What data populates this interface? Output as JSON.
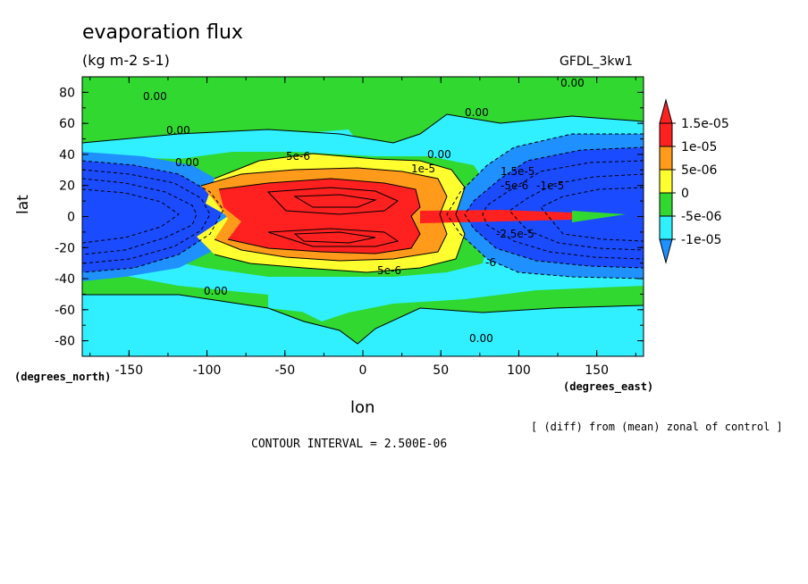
{
  "chart_data": {
    "type": "heatmap",
    "title": "evaporation flux",
    "units": "(kg m-2 s-1)",
    "model_label": "GFDL_3kw1",
    "xlabel": "lon",
    "ylabel": "lat",
    "x_axis_note": "(degrees_north)",
    "x_axis_note_right": "(degrees_east)",
    "xlim": [
      -180,
      180
    ],
    "ylim": [
      -90,
      90
    ],
    "x_ticks": [
      -150,
      -100,
      -50,
      0,
      50,
      100,
      150
    ],
    "y_ticks": [
      80,
      60,
      40,
      20,
      0,
      -20,
      -40,
      -60,
      -80
    ],
    "colorbar": {
      "levels": [
        "1.5e-05",
        "1e-05",
        "5e-06",
        "0",
        "-5e-06",
        "-1e-05"
      ],
      "colors": [
        "#ff2020",
        "#ff9a1a",
        "#ffff30",
        "#30d830",
        "#30f0ff",
        "#1e90ff",
        "#1a4bff"
      ]
    },
    "contour_labels": [
      "0.00",
      "0.00",
      "0.00",
      "0.00",
      "0.00",
      "0.00",
      "0.00",
      "0.00",
      "5e-6",
      "1e-5",
      "5e-6",
      "-5e-6",
      "-1e-5",
      "-2.5e-5",
      "-6",
      "1.5e-5"
    ],
    "contour_interval": "CONTOUR INTERVAL = 2.500E-06",
    "diff_note": "[ (diff) from (mean) zonal of control ]"
  }
}
